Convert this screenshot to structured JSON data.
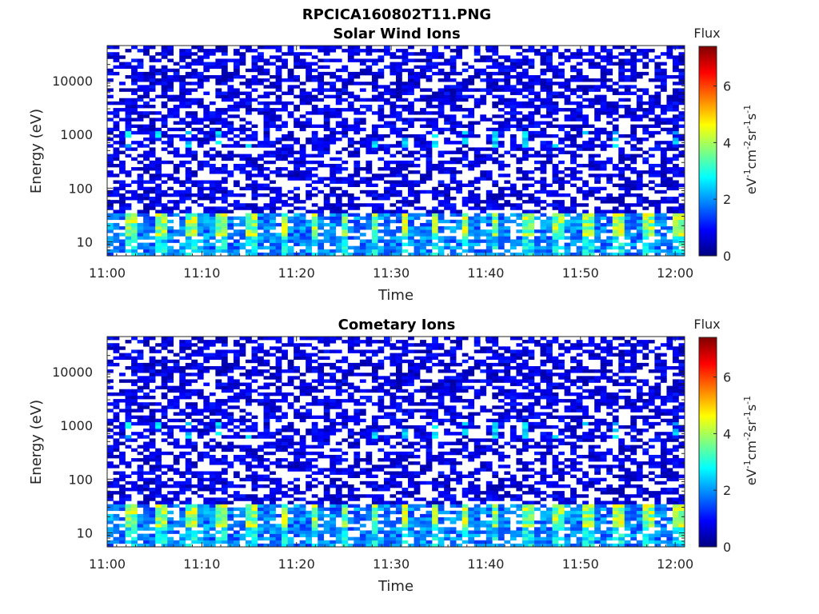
{
  "figure": {
    "title": "RPCICA160802T11.PNG"
  },
  "chart_data": [
    {
      "type": "heatmap",
      "title": "Solar Wind Ions",
      "xlabel": "Time",
      "ylabel": "Energy (eV)",
      "x_range": [
        "11:00",
        "12:01"
      ],
      "x_ticks": [
        "11:00",
        "11:10",
        "11:20",
        "11:30",
        "11:40",
        "11:50",
        "12:00"
      ],
      "y_scale": "log",
      "y_range": [
        5.5,
        45000
      ],
      "y_ticks": [
        10,
        100,
        1000,
        10000
      ],
      "y_tick_labels": [
        "10",
        "100",
        "1000",
        "10000"
      ],
      "colorbar": {
        "title": "Flux",
        "label": "eV-1cm-2sr-1s-1",
        "label_parts": [
          "eV",
          "-1",
          "cm",
          "-2",
          "sr",
          "-1",
          "s",
          "-1"
        ],
        "range": [
          0,
          7.4
        ],
        "ticks": [
          "0",
          "2",
          "4",
          "6"
        ],
        "colormap": "jet"
      },
      "grid": false,
      "periodicity_minutes": 3.2,
      "notes_visible": "noisy background up to 40 keV; bright bands (flux ~3-5) at 10-30 eV repeating every ~3 min"
    },
    {
      "type": "heatmap",
      "title": "Cometary Ions",
      "xlabel": "Time",
      "ylabel": "Energy (eV)",
      "x_range": [
        "11:00",
        "12:01"
      ],
      "x_ticks": [
        "11:00",
        "11:10",
        "11:20",
        "11:30",
        "11:40",
        "11:50",
        "12:00"
      ],
      "y_scale": "log",
      "y_range": [
        5.5,
        45000
      ],
      "y_ticks": [
        10,
        100,
        1000,
        10000
      ],
      "y_tick_labels": [
        "10",
        "100",
        "1000",
        "10000"
      ],
      "colorbar": {
        "title": "Flux",
        "label": "eV-1cm-2sr-1s-1",
        "label_parts": [
          "eV",
          "-1",
          "cm",
          "-2",
          "sr",
          "-1",
          "s",
          "-1"
        ],
        "range": [
          0,
          7.4
        ],
        "ticks": [
          "0",
          "2",
          "4",
          "6"
        ],
        "colormap": "jet"
      },
      "grid": false,
      "periodicity_minutes": 3.2
    }
  ]
}
